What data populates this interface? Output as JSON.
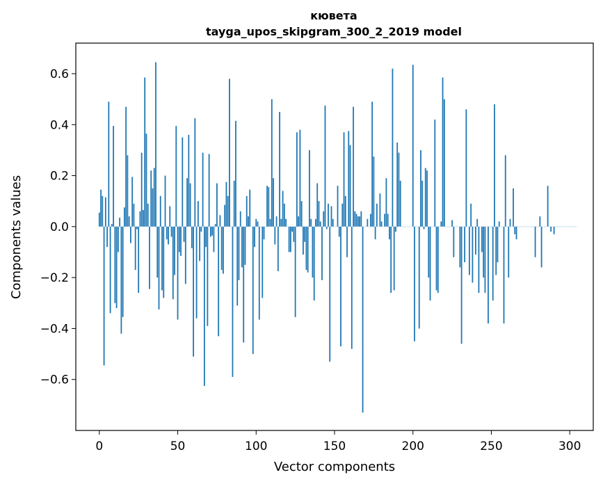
{
  "chart_data": {
    "type": "bar",
    "title": "кювета",
    "subtitle": "tayga_upos_skipgram_300_2_2019 model",
    "xlabel": "Vector components",
    "ylabel": "Components values",
    "xlim": [
      -15,
      315
    ],
    "ylim": [
      -0.8,
      0.72
    ],
    "x_ticks": [
      0,
      50,
      100,
      150,
      200,
      250,
      300
    ],
    "x_tick_labels": [
      "0",
      "50",
      "100",
      "150",
      "200",
      "250",
      "300"
    ],
    "y_ticks": [
      -0.6,
      -0.4,
      -0.2,
      0.0,
      0.2,
      0.4,
      0.6
    ],
    "y_tick_labels": [
      "−0.6",
      "−0.4",
      "−0.2",
      "0.0",
      "0.2",
      "0.4",
      "0.6"
    ],
    "bar_color": "#1f77b4",
    "grid": false,
    "values": [
      0.055,
      0.145,
      0.12,
      -0.545,
      0.115,
      -0.08,
      0.49,
      -0.34,
      0.01,
      0.395,
      -0.3,
      -0.32,
      -0.1,
      0.035,
      -0.42,
      -0.355,
      0.075,
      0.47,
      0.28,
      0.04,
      -0.065,
      0.195,
      0.09,
      -0.17,
      -0.01,
      -0.26,
      0.06,
      0.29,
      0.065,
      0.585,
      0.365,
      0.09,
      -0.245,
      0.22,
      0.15,
      0.23,
      0.645,
      -0.2,
      -0.325,
      0.12,
      -0.25,
      -0.28,
      0.2,
      -0.05,
      -0.07,
      0.08,
      -0.04,
      -0.285,
      -0.19,
      0.395,
      -0.365,
      -0.1,
      -0.115,
      0.35,
      -0.06,
      -0.225,
      0.19,
      0.36,
      0.17,
      -0.085,
      -0.51,
      0.425,
      -0.36,
      0.1,
      -0.135,
      -0.02,
      0.29,
      -0.625,
      -0.08,
      -0.39,
      0.285,
      -0.04,
      -0.035,
      -0.1,
      0.01,
      0.17,
      -0.43,
      0.045,
      -0.17,
      -0.185,
      0.085,
      0.175,
      0.12,
      0.58,
      0.0,
      -0.59,
      0.18,
      0.415,
      -0.31,
      -0.21,
      0.06,
      -0.16,
      -0.455,
      -0.15,
      0.12,
      0.04,
      0.145,
      0.0,
      -0.5,
      -0.08,
      0.03,
      0.02,
      -0.365,
      0.0,
      -0.28,
      -0.05,
      0.0,
      0.16,
      0.155,
      0.03,
      0.5,
      0.19,
      -0.07,
      0.04,
      -0.175,
      0.45,
      0.03,
      0.14,
      0.09,
      0.03,
      0.0,
      -0.1,
      -0.1,
      -0.02,
      -0.06,
      -0.355,
      0.37,
      0.04,
      0.38,
      0.1,
      -0.11,
      -0.06,
      -0.17,
      -0.18,
      0.3,
      0.03,
      -0.2,
      -0.29,
      0.03,
      0.17,
      0.1,
      0.02,
      -0.21,
      0.06,
      0.475,
      -0.01,
      0.09,
      -0.53,
      0.08,
      0.03,
      0.0,
      0.0,
      0.16,
      -0.04,
      -0.47,
      0.09,
      0.37,
      0.12,
      -0.12,
      0.375,
      0.32,
      -0.48,
      0.47,
      0.06,
      0.05,
      0.04,
      0.04,
      0.06,
      -0.73,
      0.0,
      0.0,
      0.03,
      0.0,
      0.05,
      0.49,
      0.275,
      -0.05,
      0.09,
      0.0,
      0.13,
      0.02,
      0.0,
      0.05,
      0.19,
      0.05,
      -0.05,
      -0.26,
      0.62,
      -0.25,
      -0.02,
      0.33,
      0.29,
      0.18,
      0.0,
      0.0,
      0.0,
      0.0,
      0.0,
      0.0,
      0.0,
      0.635,
      -0.45,
      0.0,
      0.0,
      -0.4,
      0.3,
      0.18,
      -0.01,
      0.23,
      0.22,
      -0.2,
      -0.29,
      0.0,
      0.0,
      0.42,
      -0.25,
      -0.26,
      0.0,
      0.02,
      0.585,
      0.5,
      0.0,
      0.0,
      0.0,
      0.0,
      0.025,
      -0.12,
      0.0,
      0.0,
      0.0,
      -0.16,
      -0.46,
      0.0,
      -0.14,
      0.46,
      0.0,
      -0.19,
      0.09,
      -0.22,
      0.0,
      -0.11,
      0.03,
      -0.26,
      0.0,
      -0.1,
      -0.2,
      -0.26,
      0.0,
      -0.38,
      0.0,
      0.0,
      -0.29,
      0.48,
      -0.19,
      -0.14,
      0.02,
      0.0,
      0.0,
      -0.38,
      0.28,
      0.0,
      -0.2,
      0.03,
      0.0,
      0.15,
      -0.03,
      -0.05,
      0.0,
      0.0,
      0.0,
      0.0,
      0.0,
      0.0,
      0.0,
      0.0,
      0.0,
      0.0,
      0.0,
      -0.12,
      0.0,
      0.0,
      0.04,
      -0.16,
      0.0,
      0.0,
      0.0,
      0.16,
      0.0,
      -0.02,
      0.0,
      -0.03,
      0.0,
      0.0,
      0.0,
      0.0,
      0.0,
      0.0,
      0.0,
      0.0,
      0.0,
      0.0,
      0.0,
      0.0,
      0.0,
      0.0
    ]
  }
}
